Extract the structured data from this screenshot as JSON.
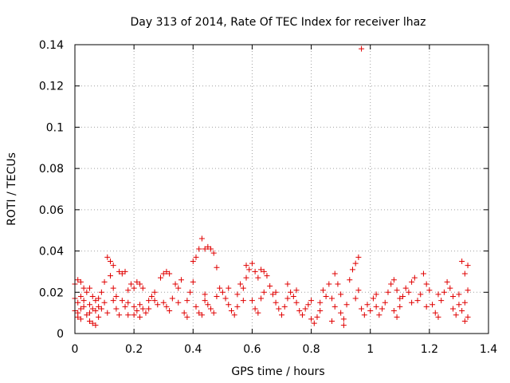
{
  "chart_data": {
    "type": "scatter",
    "title": "Day 313 of 2014, Rate Of TEC Index for receiver lhaz",
    "xlabel": "GPS time / hours",
    "ylabel": "ROTI / TECUs",
    "xlim": [
      0,
      1.4
    ],
    "ylim": [
      0,
      0.14
    ],
    "x_ticks": [
      "0",
      "0.2",
      "0.4",
      "0.6",
      "0.8",
      "1",
      "1.2",
      "1.4"
    ],
    "y_ticks": [
      "0",
      "0.02",
      "0.04",
      "0.06",
      "0.08",
      "0.1",
      "0.12",
      "0.14"
    ],
    "grid": true,
    "marker": "+",
    "marker_color": "#e00000",
    "series": [
      {
        "name": "ROTI",
        "points": [
          [
            0.0,
            0.024
          ],
          [
            0.01,
            0.026
          ],
          [
            0.02,
            0.025
          ],
          [
            0.03,
            0.022
          ],
          [
            0.0,
            0.017
          ],
          [
            0.01,
            0.015
          ],
          [
            0.02,
            0.018
          ],
          [
            0.03,
            0.016
          ],
          [
            0.0,
            0.011
          ],
          [
            0.01,
            0.01
          ],
          [
            0.02,
            0.012
          ],
          [
            0.03,
            0.013
          ],
          [
            0.01,
            0.008
          ],
          [
            0.02,
            0.007
          ],
          [
            0.04,
            0.009
          ],
          [
            0.05,
            0.01
          ],
          [
            0.04,
            0.02
          ],
          [
            0.05,
            0.022
          ],
          [
            0.06,
            0.018
          ],
          [
            0.07,
            0.016
          ],
          [
            0.06,
            0.012
          ],
          [
            0.07,
            0.011
          ],
          [
            0.08,
            0.013
          ],
          [
            0.05,
            0.006
          ],
          [
            0.06,
            0.005
          ],
          [
            0.07,
            0.004
          ],
          [
            0.08,
            0.008
          ],
          [
            0.09,
            0.012
          ],
          [
            0.09,
            0.02
          ],
          [
            0.1,
            0.025
          ],
          [
            0.1,
            0.015
          ],
          [
            0.11,
            0.01
          ],
          [
            0.11,
            0.037
          ],
          [
            0.12,
            0.035
          ],
          [
            0.13,
            0.033
          ],
          [
            0.12,
            0.028
          ],
          [
            0.13,
            0.022
          ],
          [
            0.14,
            0.018
          ],
          [
            0.14,
            0.012
          ],
          [
            0.15,
            0.009
          ],
          [
            0.15,
            0.03
          ],
          [
            0.16,
            0.029
          ],
          [
            0.17,
            0.03
          ],
          [
            0.16,
            0.016
          ],
          [
            0.17,
            0.013
          ],
          [
            0.18,
            0.009
          ],
          [
            0.18,
            0.021
          ],
          [
            0.19,
            0.024
          ],
          [
            0.2,
            0.022
          ],
          [
            0.21,
            0.025
          ],
          [
            0.22,
            0.024
          ],
          [
            0.23,
            0.022
          ],
          [
            0.2,
            0.013
          ],
          [
            0.21,
            0.011
          ],
          [
            0.22,
            0.014
          ],
          [
            0.23,
            0.012
          ],
          [
            0.2,
            0.009
          ],
          [
            0.22,
            0.008
          ],
          [
            0.24,
            0.01
          ],
          [
            0.25,
            0.012
          ],
          [
            0.25,
            0.016
          ],
          [
            0.26,
            0.018
          ],
          [
            0.27,
            0.02
          ],
          [
            0.28,
            0.014
          ],
          [
            0.29,
            0.027
          ],
          [
            0.3,
            0.029
          ],
          [
            0.31,
            0.03
          ],
          [
            0.32,
            0.029
          ],
          [
            0.3,
            0.015
          ],
          [
            0.31,
            0.013
          ],
          [
            0.32,
            0.011
          ],
          [
            0.33,
            0.017
          ],
          [
            0.34,
            0.024
          ],
          [
            0.35,
            0.022
          ],
          [
            0.36,
            0.026
          ],
          [
            0.37,
            0.01
          ],
          [
            0.38,
            0.008
          ],
          [
            0.38,
            0.016
          ],
          [
            0.39,
            0.02
          ],
          [
            0.4,
            0.025
          ],
          [
            0.4,
            0.035
          ],
          [
            0.41,
            0.037
          ],
          [
            0.42,
            0.041
          ],
          [
            0.43,
            0.046
          ],
          [
            0.44,
            0.041
          ],
          [
            0.45,
            0.042
          ],
          [
            0.46,
            0.041
          ],
          [
            0.47,
            0.039
          ],
          [
            0.48,
            0.032
          ],
          [
            0.41,
            0.013
          ],
          [
            0.42,
            0.01
          ],
          [
            0.43,
            0.009
          ],
          [
            0.44,
            0.016
          ],
          [
            0.45,
            0.014
          ],
          [
            0.46,
            0.012
          ],
          [
            0.47,
            0.01
          ],
          [
            0.48,
            0.018
          ],
          [
            0.49,
            0.022
          ],
          [
            0.5,
            0.02
          ],
          [
            0.51,
            0.017
          ],
          [
            0.52,
            0.014
          ],
          [
            0.53,
            0.011
          ],
          [
            0.54,
            0.009
          ],
          [
            0.55,
            0.013
          ],
          [
            0.55,
            0.019
          ],
          [
            0.56,
            0.024
          ],
          [
            0.57,
            0.022
          ],
          [
            0.58,
            0.027
          ],
          [
            0.58,
            0.033
          ],
          [
            0.59,
            0.031
          ],
          [
            0.6,
            0.034
          ],
          [
            0.61,
            0.03
          ],
          [
            0.62,
            0.027
          ],
          [
            0.63,
            0.031
          ],
          [
            0.64,
            0.03
          ],
          [
            0.65,
            0.028
          ],
          [
            0.6,
            0.016
          ],
          [
            0.61,
            0.012
          ],
          [
            0.62,
            0.01
          ],
          [
            0.63,
            0.017
          ],
          [
            0.64,
            0.02
          ],
          [
            0.66,
            0.023
          ],
          [
            0.67,
            0.019
          ],
          [
            0.68,
            0.015
          ],
          [
            0.69,
            0.012
          ],
          [
            0.7,
            0.009
          ],
          [
            0.71,
            0.013
          ],
          [
            0.72,
            0.017
          ],
          [
            0.72,
            0.024
          ],
          [
            0.73,
            0.02
          ],
          [
            0.74,
            0.018
          ],
          [
            0.75,
            0.015
          ],
          [
            0.76,
            0.011
          ],
          [
            0.77,
            0.009
          ],
          [
            0.78,
            0.012
          ],
          [
            0.79,
            0.014
          ],
          [
            0.8,
            0.007
          ],
          [
            0.8,
            0.016
          ],
          [
            0.81,
            0.005
          ],
          [
            0.82,
            0.008
          ],
          [
            0.83,
            0.011
          ],
          [
            0.84,
            0.021
          ],
          [
            0.85,
            0.018
          ],
          [
            0.86,
            0.024
          ],
          [
            0.87,
            0.017
          ],
          [
            0.87,
            0.006
          ],
          [
            0.88,
            0.029
          ],
          [
            0.89,
            0.024
          ],
          [
            0.9,
            0.019
          ],
          [
            0.9,
            0.01
          ],
          [
            0.91,
            0.007
          ],
          [
            0.91,
            0.004
          ],
          [
            0.92,
            0.014
          ],
          [
            0.93,
            0.026
          ],
          [
            0.94,
            0.031
          ],
          [
            0.95,
            0.034
          ],
          [
            0.96,
            0.037
          ],
          [
            0.95,
            0.017
          ],
          [
            0.96,
            0.021
          ],
          [
            0.97,
            0.138
          ],
          [
            0.97,
            0.012
          ],
          [
            0.98,
            0.009
          ],
          [
            0.99,
            0.014
          ],
          [
            1.0,
            0.011
          ],
          [
            1.01,
            0.017
          ],
          [
            1.02,
            0.013
          ],
          [
            1.03,
            0.009
          ],
          [
            1.04,
            0.012
          ],
          [
            1.05,
            0.015
          ],
          [
            1.06,
            0.02
          ],
          [
            1.07,
            0.024
          ],
          [
            1.08,
            0.026
          ],
          [
            1.09,
            0.021
          ],
          [
            1.1,
            0.017
          ],
          [
            1.08,
            0.011
          ],
          [
            1.09,
            0.008
          ],
          [
            1.1,
            0.013
          ],
          [
            1.11,
            0.018
          ],
          [
            1.12,
            0.022
          ],
          [
            1.13,
            0.02
          ],
          [
            1.14,
            0.025
          ],
          [
            1.15,
            0.027
          ],
          [
            1.16,
            0.016
          ],
          [
            1.17,
            0.019
          ],
          [
            1.18,
            0.029
          ],
          [
            1.19,
            0.024
          ],
          [
            1.2,
            0.021
          ],
          [
            1.19,
            0.013
          ],
          [
            1.21,
            0.014
          ],
          [
            1.22,
            0.01
          ],
          [
            1.23,
            0.008
          ],
          [
            1.24,
            0.016
          ],
          [
            1.25,
            0.02
          ],
          [
            1.26,
            0.025
          ],
          [
            1.27,
            0.022
          ],
          [
            1.28,
            0.018
          ],
          [
            1.28,
            0.012
          ],
          [
            1.29,
            0.009
          ],
          [
            1.3,
            0.014
          ],
          [
            1.31,
            0.035
          ],
          [
            1.32,
            0.029
          ],
          [
            1.33,
            0.033
          ],
          [
            1.33,
            0.021
          ],
          [
            1.32,
            0.015
          ],
          [
            1.31,
            0.011
          ],
          [
            1.33,
            0.008
          ],
          [
            1.32,
            0.006
          ],
          [
            1.3,
            0.019
          ],
          [
            0.05,
            0.014
          ],
          [
            0.08,
            0.017
          ],
          [
            0.13,
            0.016
          ],
          [
            0.18,
            0.015
          ],
          [
            0.27,
            0.016
          ],
          [
            0.35,
            0.015
          ],
          [
            0.44,
            0.019
          ],
          [
            0.52,
            0.022
          ],
          [
            0.57,
            0.016
          ],
          [
            0.68,
            0.02
          ],
          [
            0.75,
            0.021
          ],
          [
            0.83,
            0.015
          ],
          [
            0.88,
            0.013
          ],
          [
            1.02,
            0.019
          ],
          [
            1.14,
            0.015
          ],
          [
            1.23,
            0.019
          ]
        ]
      }
    ]
  }
}
